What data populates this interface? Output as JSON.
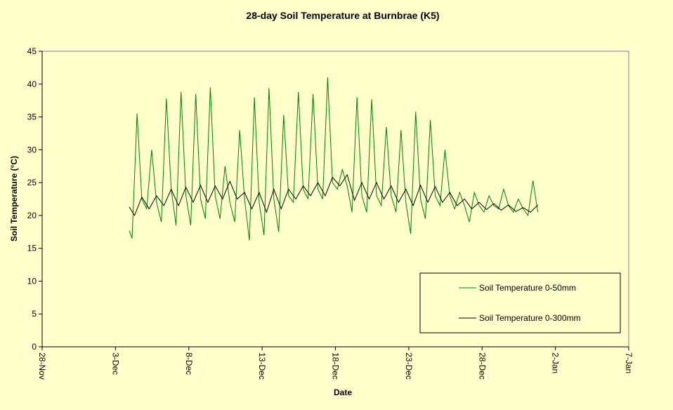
{
  "chart_data": {
    "type": "line",
    "title": "28-day Soil Temperature at Burnbrae (K5)",
    "xlabel": "Date",
    "ylabel": "Soil Temperature (°C)",
    "xlim": [
      0,
      40
    ],
    "xticks": [
      {
        "value": 0,
        "label": "28-Nov"
      },
      {
        "value": 5,
        "label": "3-Dec"
      },
      {
        "value": 10,
        "label": "8-Dec"
      },
      {
        "value": 15,
        "label": "13-Dec"
      },
      {
        "value": 20,
        "label": "18-Dec"
      },
      {
        "value": 25,
        "label": "23-Dec"
      },
      {
        "value": 30,
        "label": "28-Dec"
      },
      {
        "value": 35,
        "label": "2-Jan"
      },
      {
        "value": 40,
        "label": "7-Jan"
      }
    ],
    "ylim": [
      0,
      45
    ],
    "yticks": [
      0,
      5,
      10,
      15,
      20,
      25,
      30,
      35,
      40,
      45
    ],
    "grid": false,
    "legend": "lower right",
    "series": [
      {
        "name": "Soil Temperature 0-50mm",
        "color": "#008000",
        "x": [
          5.94,
          6.13,
          6.47,
          6.8,
          7.13,
          7.47,
          7.8,
          8.13,
          8.47,
          8.8,
          9.13,
          9.47,
          9.8,
          10.13,
          10.47,
          10.8,
          11.13,
          11.47,
          11.8,
          12.13,
          12.47,
          12.8,
          13.13,
          13.47,
          13.8,
          14.13,
          14.47,
          14.8,
          15.13,
          15.47,
          15.8,
          16.13,
          16.47,
          16.8,
          17.13,
          17.47,
          17.8,
          18.13,
          18.47,
          18.8,
          19.13,
          19.47,
          19.8,
          20.13,
          20.47,
          20.8,
          21.13,
          21.47,
          21.8,
          22.13,
          22.47,
          22.8,
          23.13,
          23.47,
          23.8,
          24.13,
          24.47,
          24.8,
          25.13,
          25.47,
          25.8,
          26.13,
          26.47,
          26.8,
          27.13,
          27.47,
          27.8,
          28.13,
          28.47,
          28.8,
          29.13,
          29.47,
          29.8,
          30.13,
          30.47,
          30.8,
          31.13,
          31.47,
          31.8,
          32.13,
          32.47,
          32.8,
          33.13,
          33.47,
          33.8
        ],
        "values": [
          17.7,
          16.5,
          35.5,
          22.5,
          21,
          30,
          22,
          19,
          37.8,
          24,
          18.5,
          38.8,
          23,
          18.5,
          38.5,
          22.5,
          19.5,
          39.5,
          23,
          19.5,
          27.5,
          22,
          19,
          33,
          22.5,
          16.2,
          38,
          22,
          17,
          39.4,
          22.5,
          17.5,
          35.3,
          23,
          22,
          38.8,
          24,
          22.5,
          38.5,
          24,
          22.5,
          41,
          25,
          24,
          27,
          24.5,
          20.5,
          38,
          23,
          20.5,
          37.7,
          23,
          21.5,
          33.5,
          23,
          20.5,
          33,
          22,
          17.2,
          35.8,
          22.5,
          19.5,
          34.5,
          23,
          21.5,
          30,
          23,
          21,
          23.5,
          21.5,
          19,
          23.5,
          21.5,
          20.5,
          23,
          21.5,
          21,
          24,
          21.5,
          20.5,
          22.5,
          21,
          20,
          25.3,
          20.5
        ]
      },
      {
        "name": "Soil Temperature 0-300mm",
        "color": "#000000",
        "x": [
          5.94,
          6.3,
          6.8,
          7.3,
          7.8,
          8.3,
          8.8,
          9.3,
          9.8,
          10.3,
          10.8,
          11.3,
          11.8,
          12.3,
          12.8,
          13.3,
          13.8,
          14.3,
          14.8,
          15.3,
          15.8,
          16.3,
          16.8,
          17.3,
          17.8,
          18.3,
          18.8,
          19.3,
          19.8,
          20.3,
          20.8,
          21.3,
          21.8,
          22.3,
          22.8,
          23.3,
          23.8,
          24.3,
          24.8,
          25.3,
          25.8,
          26.3,
          26.8,
          27.3,
          27.8,
          28.3,
          28.8,
          29.3,
          29.8,
          30.3,
          30.8,
          31.3,
          31.8,
          32.3,
          32.8,
          33.3,
          33.8
        ],
        "values": [
          21.3,
          20,
          22.8,
          21,
          23,
          21.5,
          24,
          21.5,
          24.3,
          22,
          24.6,
          22,
          24.5,
          22.5,
          25.2,
          22.5,
          23.5,
          21,
          23.5,
          20.5,
          24,
          21,
          24,
          22.5,
          24.5,
          23,
          25,
          23,
          25.8,
          24.5,
          26.2,
          22.3,
          25,
          22.5,
          25,
          22.5,
          24.5,
          22,
          24,
          21.5,
          24.6,
          22,
          24.4,
          22,
          23.5,
          21.5,
          22.5,
          21,
          22,
          20.9,
          21.8,
          20.8,
          21.6,
          20.6,
          21.2,
          20.5,
          21.6
        ]
      }
    ]
  }
}
